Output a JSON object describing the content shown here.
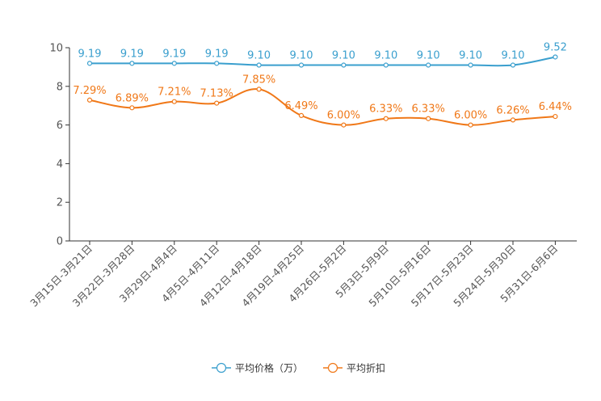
{
  "chart_data": {
    "type": "line",
    "title": "",
    "xlabel": "",
    "ylabel": "",
    "ylim": [
      0,
      10
    ],
    "yticks": [
      "0",
      "2",
      "4",
      "6",
      "8",
      "10"
    ],
    "categories": [
      "3月15日-3月21日",
      "3月22日-3月28日",
      "3月29日-4月4日",
      "4月5日-4月11日",
      "4月12日-4月18日",
      "4月19日-4月25日",
      "4月26日-5月2日",
      "5月3日-5月9日",
      "5月10日-5月16日",
      "5月17日-5月23日",
      "5月24日-5月30日",
      "5月31日-6月6日"
    ],
    "legend_position": "bottom",
    "series": [
      {
        "name": "平均价格（万）",
        "color": "#3a9fce",
        "values": [
          9.19,
          9.19,
          9.19,
          9.19,
          9.1,
          9.1,
          9.1,
          9.1,
          9.1,
          9.1,
          9.1,
          9.52
        ],
        "labels": [
          "9.19",
          "9.19",
          "9.19",
          "9.19",
          "9.10",
          "9.10",
          "9.10",
          "9.10",
          "9.10",
          "9.10",
          "9.10",
          "9.52"
        ]
      },
      {
        "name": "平均折扣",
        "color": "#f07818",
        "values": [
          7.29,
          6.89,
          7.21,
          7.13,
          7.85,
          6.49,
          6.0,
          6.33,
          6.33,
          6.0,
          6.26,
          6.44
        ],
        "labels": [
          "7.29%",
          "6.89%",
          "7.21%",
          "7.13%",
          "7.85%",
          "6.49%",
          "6.00%",
          "6.33%",
          "6.33%",
          "6.00%",
          "6.26%",
          "6.44%"
        ]
      }
    ]
  }
}
